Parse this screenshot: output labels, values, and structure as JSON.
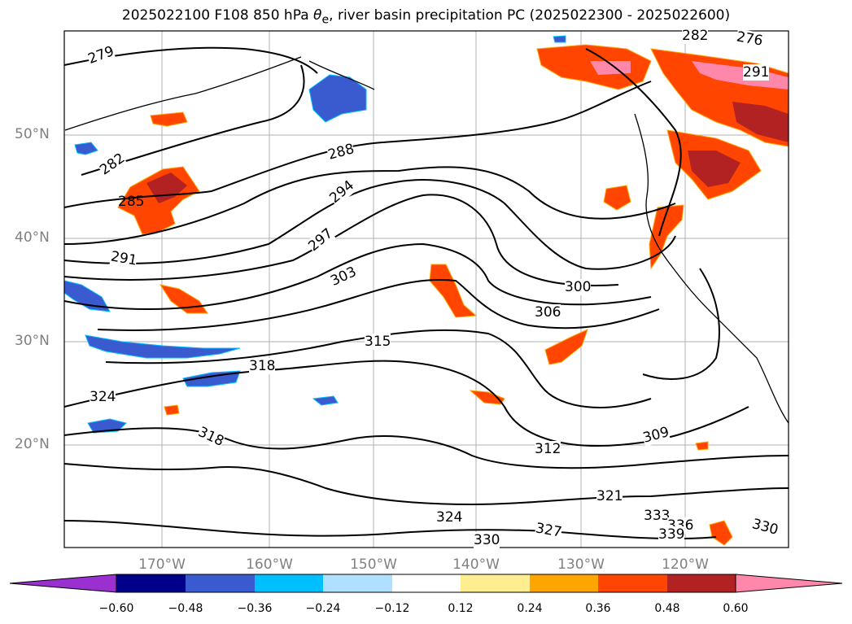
{
  "title": {
    "prefix": "2025022100 F108 850 hPa ",
    "theta": "θ",
    "theta_sub": "e",
    "suffix": ", river basin precipitation PC (2025022300 - 2025022600)"
  },
  "lat_labels": [
    "50°N",
    "40°N",
    "30°N",
    "20°N"
  ],
  "lon_labels": [
    "170°W",
    "160°W",
    "150°W",
    "140°W",
    "130°W",
    "120°W"
  ],
  "colorbar": {
    "ticks": [
      "−0.60",
      "−0.48",
      "−0.36",
      "−0.24",
      "−0.12",
      "0.12",
      "0.24",
      "0.36",
      "0.48",
      "0.60"
    ],
    "colors": [
      "#9b30d0",
      "#00008b",
      "#3a5bd0",
      "#00bfff",
      "#b0e0ff",
      "#ffffff",
      "#ffee90",
      "#ffa500",
      "#ff4500",
      "#b22222",
      "#ff88aa"
    ]
  },
  "contour_labels": [
    "279",
    "282",
    "285",
    "288",
    "291",
    "294",
    "297",
    "300",
    "303",
    "306",
    "309",
    "312",
    "315",
    "318",
    "321",
    "324",
    "327",
    "330",
    "333",
    "336",
    "339",
    "276"
  ],
  "colors": {
    "precip_positive": "#ff4500",
    "precip_negative": "#3a5bd0",
    "contour": "#000000",
    "grid": "#b0b0b0"
  }
}
